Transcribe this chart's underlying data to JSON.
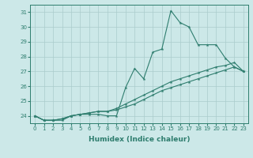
{
  "title": "",
  "xlabel": "Humidex (Indice chaleur)",
  "x": [
    0,
    1,
    2,
    3,
    4,
    5,
    6,
    7,
    8,
    9,
    10,
    11,
    12,
    13,
    14,
    15,
    16,
    17,
    18,
    19,
    20,
    21,
    22,
    23
  ],
  "line1": [
    24.0,
    23.7,
    23.7,
    23.7,
    24.0,
    24.1,
    24.1,
    24.1,
    24.0,
    24.0,
    25.9,
    27.2,
    26.5,
    28.3,
    28.5,
    31.1,
    30.3,
    30.0,
    28.8,
    28.8,
    28.8,
    27.9,
    27.3,
    27.0
  ],
  "line2": [
    24.0,
    23.7,
    23.7,
    23.8,
    24.0,
    24.1,
    24.2,
    24.3,
    24.3,
    24.5,
    24.8,
    25.1,
    25.4,
    25.7,
    26.0,
    26.3,
    26.5,
    26.7,
    26.9,
    27.1,
    27.3,
    27.4,
    27.6,
    27.0
  ],
  "line3": [
    24.0,
    23.7,
    23.7,
    23.8,
    24.0,
    24.1,
    24.2,
    24.3,
    24.3,
    24.4,
    24.6,
    24.8,
    25.1,
    25.4,
    25.7,
    25.9,
    26.1,
    26.3,
    26.5,
    26.7,
    26.9,
    27.1,
    27.3,
    27.0
  ],
  "color": "#2e7d6e",
  "bg_color": "#cce8e8",
  "grid_color": "#aacccc",
  "ylim": [
    23.5,
    31.5
  ],
  "yticks": [
    24,
    25,
    26,
    27,
    28,
    29,
    30,
    31
  ],
  "xlim": [
    -0.5,
    23.5
  ],
  "marker": "*",
  "markersize": 3,
  "linewidth": 0.8,
  "xlabel_fontsize": 6.5,
  "tick_fontsize": 5
}
